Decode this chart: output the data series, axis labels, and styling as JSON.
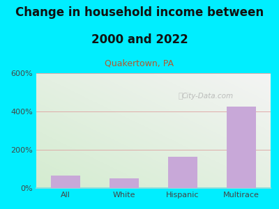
{
  "title_line1": "Change in household income between",
  "title_line2": "2000 and 2022",
  "subtitle": "Quakertown, PA",
  "categories": [
    "All",
    "White",
    "Hispanic",
    "Multirace"
  ],
  "values": [
    65,
    52,
    162,
    425
  ],
  "bar_color": "#c8a8d8",
  "title_fontsize": 12,
  "subtitle_fontsize": 9,
  "subtitle_color": "#b05a30",
  "tick_fontsize": 8,
  "ylim": [
    0,
    600
  ],
  "yticks": [
    0,
    200,
    400,
    600
  ],
  "ytick_labels": [
    "0%",
    "200%",
    "400%",
    "600%"
  ],
  "background_outer": "#00eeff",
  "bg_bottom_left": "#d4ecd0",
  "bg_top_right": "#f4f4f4",
  "watermark": "City-Data.com",
  "grid_color": "#dda0a0",
  "bottom_line_color": "#88dddd",
  "bar_width": 0.5
}
